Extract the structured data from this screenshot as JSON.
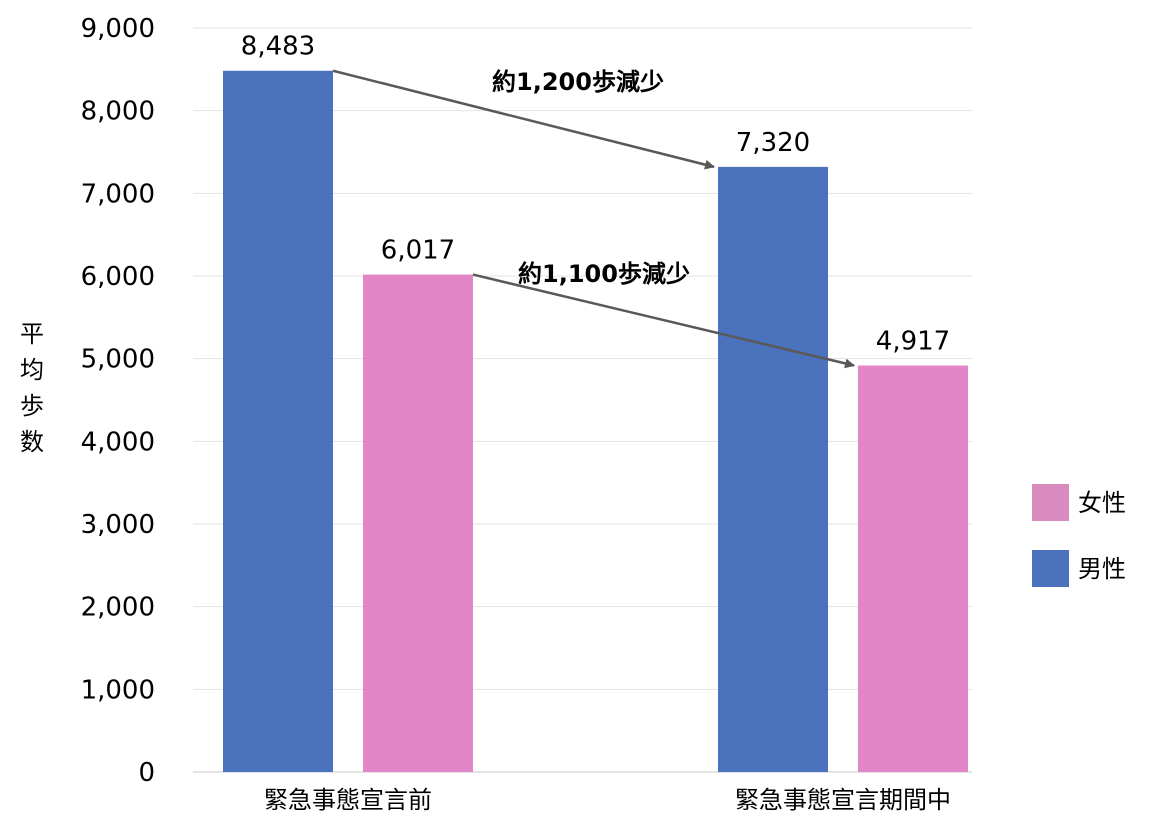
{
  "chart_data": {
    "type": "bar",
    "categories": [
      "緊急事態宣言前",
      "緊急事態宣言期間中"
    ],
    "series": [
      {
        "name": "男性",
        "values": [
          8483,
          7320
        ],
        "color": "#4a72bd"
      },
      {
        "name": "女性",
        "values": [
          6017,
          4917
        ],
        "color": "#e386c8"
      }
    ],
    "data_labels": [
      [
        "8,483",
        "7,320"
      ],
      [
        "6,017",
        "4,917"
      ]
    ],
    "ylabel": "平均歩数",
    "ylim": [
      0,
      9000
    ],
    "yticks": [
      0,
      1000,
      2000,
      3000,
      4000,
      5000,
      6000,
      7000,
      8000,
      9000
    ],
    "ytick_labels": [
      "0",
      "1,000",
      "2,000",
      "3,000",
      "4,000",
      "5,000",
      "6,000",
      "7,000",
      "8,000",
      "9,000"
    ],
    "grid": true,
    "legend": {
      "position": "right",
      "entries": [
        {
          "label": "女性",
          "color": "#d98bc0"
        },
        {
          "label": "男性",
          "color": "#4a72bd"
        }
      ]
    },
    "annotations": [
      {
        "series": "男性",
        "text": "約1,200歩減少"
      },
      {
        "series": "女性",
        "text": "約1,100歩減少"
      }
    ]
  }
}
